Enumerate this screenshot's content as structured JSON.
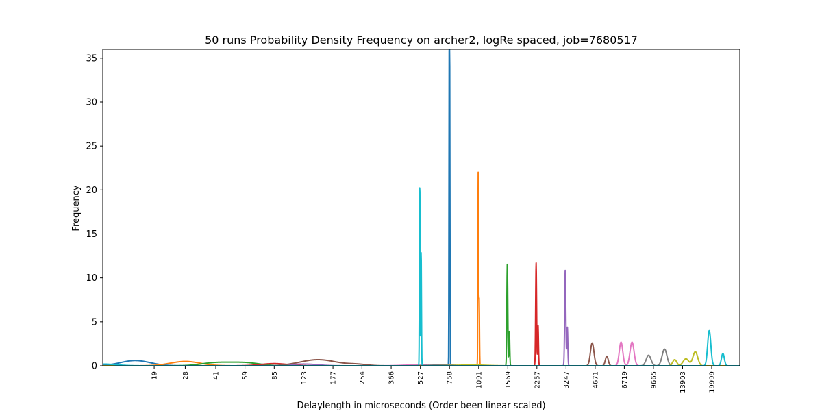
{
  "chart_data": {
    "type": "line",
    "title": "50 runs Probability Density Frequency on archer2, logRe spaced, job=7680517",
    "xlabel": "Delaylength in microseconds (Order been linear scaled)",
    "ylabel": "Frequency",
    "ylim": [
      0,
      36
    ],
    "xlim": [
      10,
      28400
    ],
    "x_scale": "log",
    "x_ticks": [
      19,
      28,
      41,
      59,
      85,
      123,
      177,
      254,
      366,
      527,
      758,
      1091,
      1569,
      2257,
      3247,
      4671,
      6719,
      9665,
      13903,
      19999
    ],
    "y_ticks": [
      0,
      5,
      10,
      15,
      20,
      25,
      30,
      35
    ],
    "grid": false,
    "legend": "none",
    "series": [
      {
        "color": "#1f77b4",
        "bumps": [
          [
            15,
            0.6,
            2.7
          ]
        ],
        "spikes": [
          [
            755,
            34.3,
            0.003
          ],
          [
            760,
            32.0,
            0.003
          ]
        ]
      },
      {
        "color": "#ff7f0e",
        "bumps": [
          [
            28,
            0.5,
            2.7
          ]
        ],
        "spikes": [
          [
            1085,
            22.0,
            0.004
          ],
          [
            1098,
            7.5,
            0.004
          ]
        ]
      },
      {
        "color": "#2ca02c",
        "bumps": [
          [
            41,
            0.35,
            2.8
          ],
          [
            59,
            0.35,
            2.8
          ]
        ],
        "spikes": [
          [
            1560,
            11.6,
            0.006
          ],
          [
            1600,
            4.0,
            0.005
          ]
        ]
      },
      {
        "color": "#d62728",
        "bumps": [
          [
            85,
            0.25,
            3.0
          ]
        ],
        "spikes": [
          [
            2235,
            11.7,
            0.006
          ],
          [
            2290,
            4.6,
            0.005
          ]
        ]
      },
      {
        "color": "#9467bd",
        "bumps": [
          [
            123,
            0.2,
            3.0
          ]
        ],
        "spikes": [
          [
            3215,
            10.9,
            0.007
          ],
          [
            3300,
            4.4,
            0.006
          ]
        ]
      },
      {
        "color": "#8c564b",
        "bumps": [
          [
            147,
            0.7,
            2.2
          ],
          [
            240,
            0.15,
            4.0
          ]
        ],
        "spikes": [
          [
            4500,
            2.6,
            0.022
          ],
          [
            5400,
            1.1,
            0.018
          ]
        ]
      },
      {
        "color": "#e377c2",
        "bumps": [
          [
            500,
            0.1,
            3.0
          ]
        ],
        "spikes": [
          [
            6450,
            2.7,
            0.022
          ],
          [
            7400,
            2.7,
            0.025
          ]
        ]
      },
      {
        "color": "#7f7f7f",
        "bumps": [
          [
            700,
            0.1,
            3.0
          ]
        ],
        "spikes": [
          [
            9100,
            1.2,
            0.03
          ],
          [
            11100,
            1.9,
            0.03
          ]
        ]
      },
      {
        "color": "#bcbd22",
        "bumps": [
          [
            1000,
            0.1,
            3.0
          ]
        ],
        "spikes": [
          [
            12600,
            0.7,
            0.025
          ],
          [
            14500,
            0.8,
            0.035
          ],
          [
            16300,
            1.6,
            0.03
          ]
        ]
      },
      {
        "color": "#17becf",
        "bumps": [
          [
            10,
            0.2,
            3.0
          ]
        ],
        "spikes": [
          [
            523,
            21.0,
            0.004
          ],
          [
            532,
            13.1,
            0.004
          ],
          [
            19400,
            4.0,
            0.02
          ],
          [
            23000,
            1.4,
            0.018
          ]
        ]
      }
    ]
  }
}
